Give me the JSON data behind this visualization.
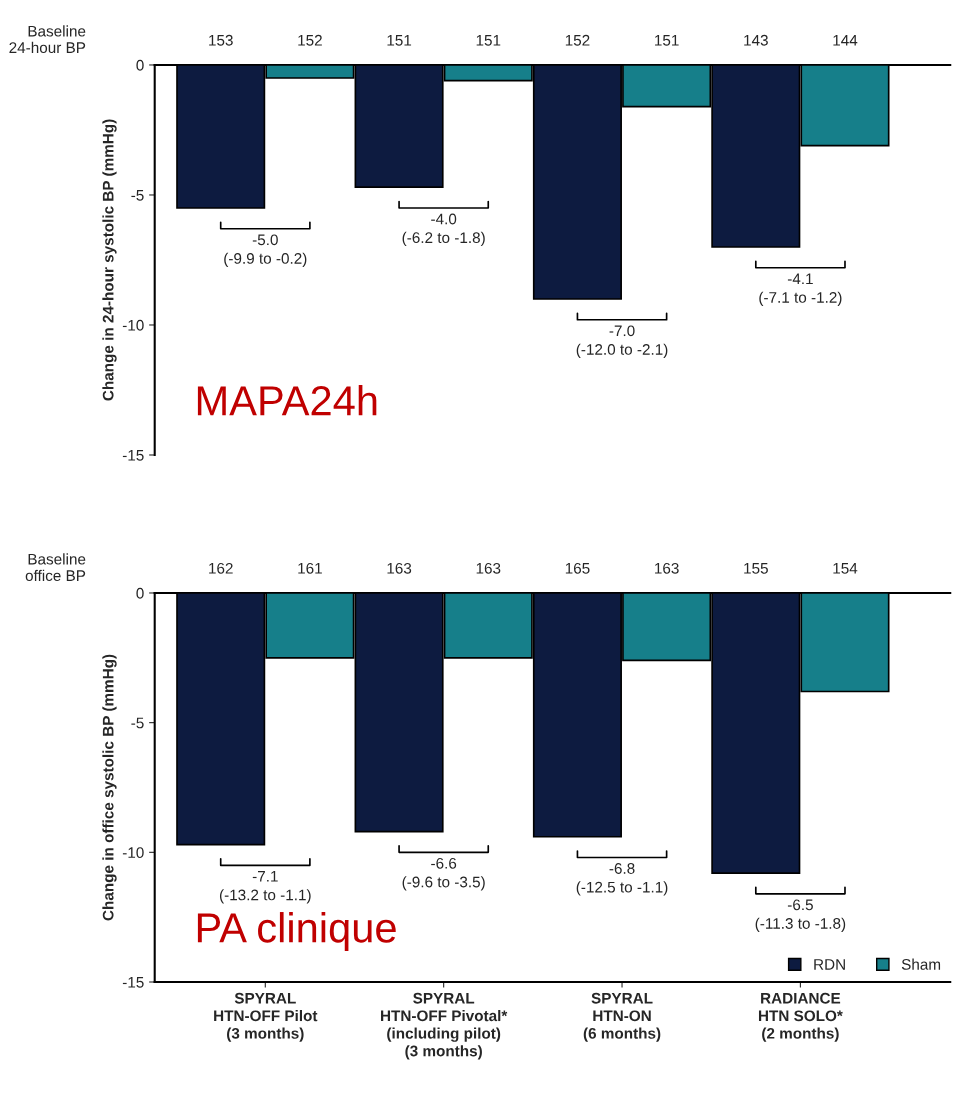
{
  "chart_data": [
    {
      "type": "bar",
      "ylabel": "Change in 24-hour systolic BP (mmHg)",
      "categories": [
        null,
        null,
        null,
        null
      ],
      "series": [
        {
          "color": "#0d1b40",
          "values": [
            -5.5,
            -4.7,
            -9.0,
            -7.0
          ]
        },
        {
          "color": "#167f8a",
          "values": [
            -0.5,
            -0.6,
            -1.6,
            -3.1
          ]
        }
      ],
      "ylim": [
        -15,
        0
      ],
      "yticks": [
        0,
        -5,
        -10,
        -15
      ],
      "tick_labels": "y",
      "legend": false,
      "annotations": [
        "Baseline\n24-hour BP",
        "153",
        "152",
        "151",
        "151",
        "152",
        "151",
        "143",
        "144",
        "-5.0\n(-9.9 to -0.2)",
        "-4.0\n(-6.2 to -1.8)",
        "-7.0\n(-12.0 to -2.1)",
        "-4.1\n(-7.1 to -1.2)",
        "MAPA24h"
      ]
    },
    {
      "type": "bar",
      "ylabel": "Change in office systolic BP (mmHg)",
      "categories": [
        "SPYRAL\nHTN-OFF Pilot\n(3 months)",
        "SPYRAL\nHTN-OFF Pivotal*\n(including pilot)\n(3 months)",
        "SPYRAL\nHTN-ON\n(6 months)",
        "RADIANCE\nHTN SOLO*\n(2 months)"
      ],
      "series": [
        {
          "name": "RDN",
          "color": "#0d1b40",
          "values": [
            -9.7,
            -9.2,
            -9.4,
            -10.8
          ]
        },
        {
          "name": "Sham",
          "color": "#167f8a",
          "values": [
            -2.5,
            -2.5,
            -2.6,
            -3.8
          ]
        }
      ],
      "ylim": [
        -15,
        0
      ],
      "yticks": [
        0,
        -5,
        -10,
        -15
      ],
      "legend": "bottom right",
      "annotations": [
        "Baseline\noffice BP",
        "162",
        "161",
        "163",
        "163",
        "165",
        "163",
        "155",
        "154",
        "-7.1\n(-13.2 to -1.1)",
        "-6.6\n(-9.6 to -3.5)",
        "-6.8\n(-12.5 to -1.1)",
        "-6.5\n(-11.3 to -1.8)",
        "PA clinique"
      ]
    }
  ]
}
